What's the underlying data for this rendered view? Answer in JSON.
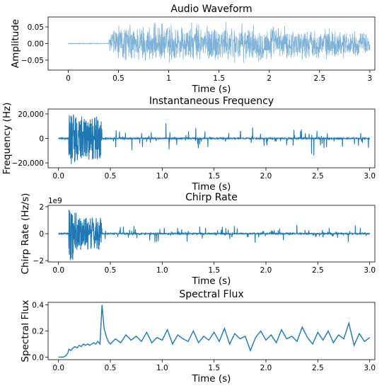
{
  "chart_data": [
    {
      "type": "line",
      "title": "Audio Waveform",
      "xlabel": "Time (s)",
      "ylabel": "Amplitude",
      "xlim": [
        -0.2,
        3.05
      ],
      "ylim": [
        -0.08,
        0.08
      ],
      "xticks": [
        0,
        0.5,
        1,
        1.5,
        2,
        2.5,
        3
      ],
      "xtick_labels": [
        "0",
        "0.5",
        "1",
        "1.5",
        "2",
        "2.5",
        "3"
      ],
      "yticks": [
        0.05,
        0.0,
        -0.05
      ],
      "ytick_labels": [
        "0.05",
        "0.00",
        "−0.05"
      ],
      "color": "#7fb2d8",
      "series_description": "near-silent 0–0.42 s, then dense oscillation",
      "envelope": {
        "t": [
          0,
          0.4,
          0.42,
          0.45,
          0.6,
          0.8,
          1.0,
          1.2,
          1.4,
          1.5,
          1.6,
          1.8,
          2.0,
          2.2,
          2.4,
          2.6,
          2.8,
          3.0
        ],
        "amp": [
          0.0015,
          0.0015,
          0.04,
          0.06,
          0.065,
          0.065,
          0.07,
          0.065,
          0.07,
          0.068,
          0.065,
          0.06,
          0.06,
          0.055,
          0.05,
          0.05,
          0.045,
          0.035
        ]
      }
    },
    {
      "type": "line",
      "title": "Instantaneous Frequency",
      "xlabel": "Time (s)",
      "ylabel": "Frequency (Hz)",
      "xlim": [
        -0.1,
        3.05
      ],
      "ylim": [
        -24000,
        24000
      ],
      "xticks": [
        0,
        0.5,
        1,
        1.5,
        2,
        2.5,
        3
      ],
      "xtick_labels": [
        "0.0",
        "0.5",
        "1.0",
        "1.5",
        "2.0",
        "2.5",
        "3.0"
      ],
      "yticks": [
        20000,
        0,
        -20000
      ],
      "ytick_labels": [
        "20,000",
        "0",
        "−20,000"
      ],
      "color": "#1f77b4",
      "series_description": "flat near 0 with dense spikes 0.1–0.4 s up to ±22050 Hz and sparse spikes afterwards",
      "bursts": [
        {
          "start": 0.1,
          "end": 0.18,
          "amp": 22000
        },
        {
          "start": 0.18,
          "end": 0.42,
          "amp": 18000
        }
      ],
      "spike_amp": 14000
    },
    {
      "type": "line",
      "title": "Chirp Rate",
      "xlabel": "Time (s)",
      "ylabel": "Chirp Rate (Hz/s)",
      "offset_label": "1e9",
      "xlim": [
        -0.1,
        3.05
      ],
      "ylim": [
        -2.1,
        2.1
      ],
      "xticks": [
        0,
        0.5,
        1,
        1.5,
        2,
        2.5,
        3
      ],
      "xtick_labels": [
        "0.0",
        "0.5",
        "1.0",
        "1.5",
        "2.0",
        "2.5",
        "3.0"
      ],
      "yticks": [
        2,
        0,
        -2
      ],
      "ytick_labels": [
        "2",
        "0",
        "−2"
      ],
      "color": "#1f77b4",
      "series_description": "flat near 0 with dense spikes 0.1–0.4 s up to ±2e9 Hz/s and sparse spikes afterwards",
      "bursts": [
        {
          "start": 0.1,
          "end": 0.17,
          "amp": 2.0
        },
        {
          "start": 0.17,
          "end": 0.42,
          "amp": 1.2
        }
      ],
      "spike_amp": 0.9
    },
    {
      "type": "line",
      "title": "Spectral Flux",
      "xlabel": "Time (s)",
      "ylabel": "Spectral Flux",
      "xlim": [
        -0.1,
        3.05
      ],
      "ylim": [
        -0.02,
        0.42
      ],
      "xticks": [
        0,
        0.5,
        1,
        1.5,
        2,
        2.5,
        3
      ],
      "xtick_labels": [
        "0.0",
        "0.5",
        "1.0",
        "1.5",
        "2.0",
        "2.5",
        "3.0"
      ],
      "yticks": [
        0.4,
        0.2,
        0.0
      ],
      "ytick_labels": [
        "0.4",
        "0.2",
        "0.0"
      ],
      "color": "#1f77b4",
      "x": [
        0.0,
        0.02,
        0.05,
        0.07,
        0.09,
        0.1,
        0.12,
        0.14,
        0.16,
        0.18,
        0.2,
        0.22,
        0.24,
        0.26,
        0.28,
        0.3,
        0.32,
        0.34,
        0.36,
        0.38,
        0.4,
        0.42,
        0.44,
        0.46,
        0.48,
        0.5,
        0.55,
        0.6,
        0.65,
        0.7,
        0.75,
        0.8,
        0.85,
        0.9,
        0.95,
        1.0,
        1.05,
        1.1,
        1.15,
        1.2,
        1.25,
        1.3,
        1.35,
        1.4,
        1.45,
        1.5,
        1.55,
        1.6,
        1.65,
        1.7,
        1.75,
        1.8,
        1.85,
        1.9,
        1.95,
        2.0,
        2.05,
        2.1,
        2.15,
        2.2,
        2.25,
        2.3,
        2.35,
        2.4,
        2.45,
        2.5,
        2.55,
        2.6,
        2.65,
        2.7,
        2.75,
        2.8,
        2.85,
        2.9,
        2.95,
        3.0
      ],
      "y": [
        0.0,
        0.0,
        0.0,
        0.01,
        0.03,
        0.06,
        0.05,
        0.07,
        0.08,
        0.07,
        0.09,
        0.08,
        0.1,
        0.09,
        0.1,
        0.09,
        0.1,
        0.11,
        0.1,
        0.12,
        0.1,
        0.4,
        0.22,
        0.16,
        0.12,
        0.1,
        0.14,
        0.11,
        0.17,
        0.13,
        0.16,
        0.12,
        0.19,
        0.11,
        0.15,
        0.13,
        0.21,
        0.1,
        0.17,
        0.14,
        0.12,
        0.2,
        0.11,
        0.16,
        0.13,
        0.19,
        0.12,
        0.22,
        0.1,
        0.18,
        0.14,
        0.16,
        0.05,
        0.15,
        0.2,
        0.13,
        0.17,
        0.11,
        0.21,
        0.14,
        0.16,
        0.12,
        0.23,
        0.15,
        0.1,
        0.19,
        0.13,
        0.2,
        0.11,
        0.17,
        0.14,
        0.26,
        0.09,
        0.18,
        0.12,
        0.15
      ]
    }
  ]
}
